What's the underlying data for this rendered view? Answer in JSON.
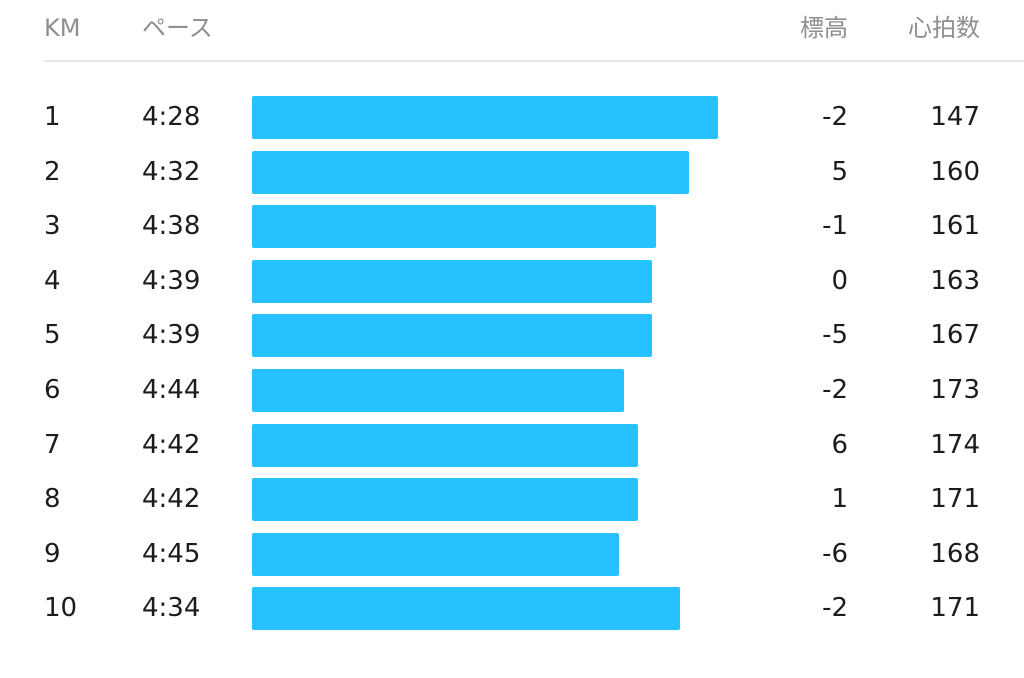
{
  "header": {
    "km_label": "KM",
    "pace_label": "ペース",
    "elevation_label": "標高",
    "heart_rate_label": "心拍数"
  },
  "colors": {
    "bar": "#25c2ff",
    "header_text": "#8e8e93",
    "divider": "#e6e6e9"
  },
  "splits": [
    {
      "km": "1",
      "pace": "4:28",
      "pace_bar_fraction": 1.0,
      "elevation": "-2",
      "heart_rate": "147"
    },
    {
      "km": "2",
      "pace": "4:32",
      "pace_bar_fraction": 0.937,
      "elevation": "5",
      "heart_rate": "160"
    },
    {
      "km": "3",
      "pace": "4:38",
      "pace_bar_fraction": 0.867,
      "elevation": "-1",
      "heart_rate": "161"
    },
    {
      "km": "4",
      "pace": "4:39",
      "pace_bar_fraction": 0.858,
      "elevation": "0",
      "heart_rate": "163"
    },
    {
      "km": "5",
      "pace": "4:39",
      "pace_bar_fraction": 0.858,
      "elevation": "-5",
      "heart_rate": "167"
    },
    {
      "km": "6",
      "pace": "4:44",
      "pace_bar_fraction": 0.798,
      "elevation": "-2",
      "heart_rate": "173"
    },
    {
      "km": "7",
      "pace": "4:42",
      "pace_bar_fraction": 0.828,
      "elevation": "6",
      "heart_rate": "174"
    },
    {
      "km": "8",
      "pace": "4:42",
      "pace_bar_fraction": 0.828,
      "elevation": "1",
      "heart_rate": "171"
    },
    {
      "km": "9",
      "pace": "4:45",
      "pace_bar_fraction": 0.788,
      "elevation": "-6",
      "heart_rate": "168"
    },
    {
      "km": "10",
      "pace": "4:34",
      "pace_bar_fraction": 0.918,
      "elevation": "-2",
      "heart_rate": "171"
    }
  ]
}
